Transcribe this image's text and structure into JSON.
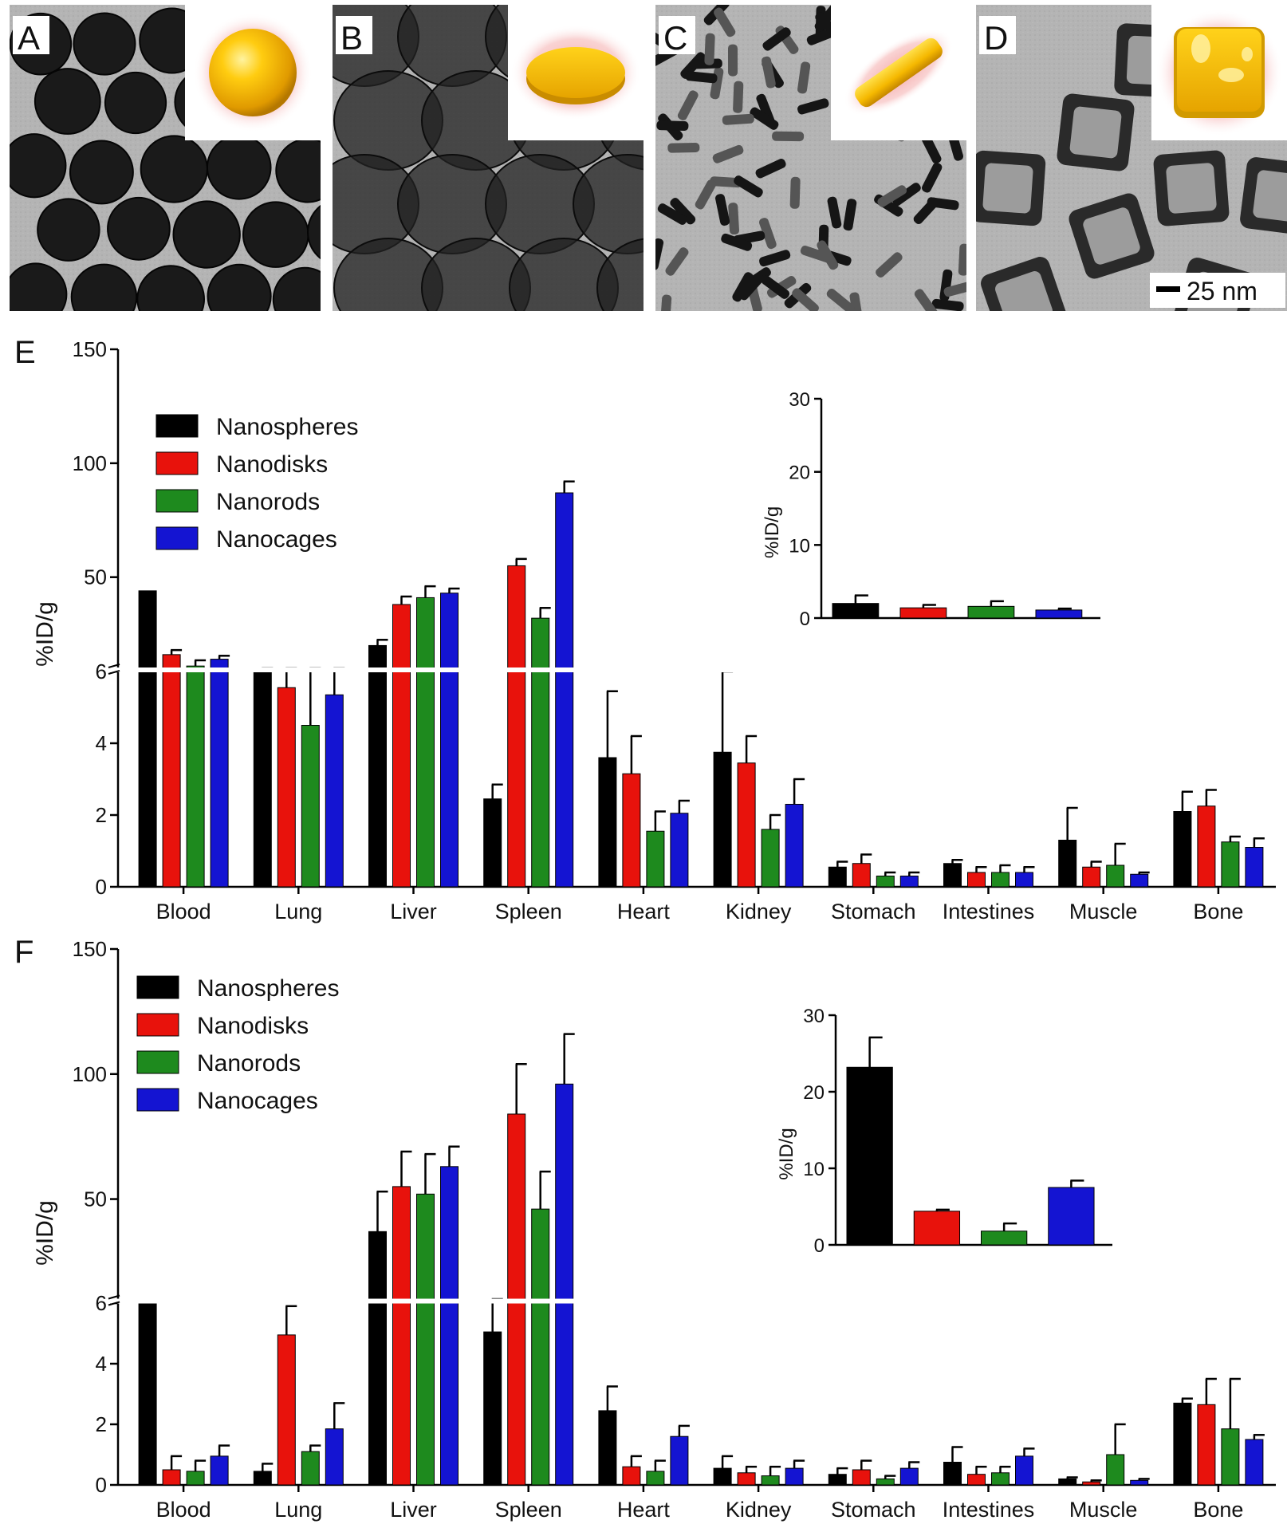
{
  "panels": {
    "tem": [
      {
        "letter": "A",
        "shape": "sphere-icon"
      },
      {
        "letter": "B",
        "shape": "disk-icon"
      },
      {
        "letter": "C",
        "shape": "rod-icon"
      },
      {
        "letter": "D",
        "shape": "cage-icon"
      }
    ],
    "scale_bar": "25 nm",
    "E_label": "E",
    "F_label": "F"
  },
  "colors": {
    "Nanospheres": "#000000",
    "Nanodisks": "#e8120c",
    "Nanorods": "#1e8a1e",
    "Nanocages": "#1414d2",
    "gold": "#f2b400",
    "glow": "#f4a0a0"
  },
  "chart_data": [
    {
      "id": "E",
      "type": "bar",
      "ylabel": "%ID/g",
      "broken_axis": true,
      "lower_ticks": [
        0,
        2,
        4,
        6
      ],
      "upper_ticks": [
        50,
        100,
        150
      ],
      "categories": [
        "Blood",
        "Lung",
        "Liver",
        "Spleen",
        "Heart",
        "Kidney",
        "Stomach",
        "Intestines",
        "Muscle",
        "Bone"
      ],
      "series": [
        {
          "name": "Nanospheres",
          "values": [
            44,
            6.5,
            20,
            2.45,
            3.6,
            3.75,
            0.55,
            0.65,
            1.3,
            2.1
          ],
          "errors": [
            0,
            0.3,
            2.5,
            0.4,
            1.85,
            2.25,
            0.15,
            0.1,
            0.9,
            0.55
          ]
        },
        {
          "name": "Nanodisks",
          "values": [
            16,
            5.55,
            38,
            55,
            3.15,
            3.45,
            0.65,
            0.4,
            0.55,
            2.25
          ],
          "errors": [
            2,
            1.5,
            3.5,
            3,
            1.05,
            0.75,
            0.25,
            0.15,
            0.15,
            0.45
          ]
        },
        {
          "name": "Nanorods",
          "values": [
            11,
            4.5,
            41,
            32,
            1.55,
            1.6,
            0.3,
            0.4,
            0.6,
            1.25
          ],
          "errors": [
            2.5,
            2.8,
            5,
            4.5,
            0.55,
            0.4,
            0.1,
            0.2,
            0.6,
            0.15
          ]
        },
        {
          "name": "Nanocages",
          "values": [
            14,
            5.35,
            43,
            87,
            2.05,
            2.3,
            0.3,
            0.4,
            0.35,
            1.1
          ],
          "errors": [
            1.5,
            1.1,
            2,
            5,
            0.35,
            0.7,
            0.1,
            0.15,
            0.05,
            0.25
          ]
        }
      ],
      "inset": {
        "ylabel": "%ID/g",
        "ticks": [
          0,
          10,
          20,
          30
        ],
        "ylim": [
          0,
          30
        ],
        "values": [
          2,
          1.4,
          1.6,
          1.1
        ],
        "errors": [
          1.1,
          0.4,
          0.7,
          0.2
        ]
      }
    },
    {
      "id": "F",
      "type": "bar",
      "ylabel": "%ID/g",
      "broken_axis": true,
      "lower_ticks": [
        0,
        2,
        4,
        6
      ],
      "upper_ticks": [
        50,
        100,
        150
      ],
      "categories": [
        "Blood",
        "Lung",
        "Liver",
        "Spleen",
        "Heart",
        "Kidney",
        "Stomach",
        "Intestines",
        "Muscle",
        "Bone"
      ],
      "series": [
        {
          "name": "Nanospheres",
          "values": [
            7,
            0.45,
            37,
            5.05,
            2.45,
            0.55,
            0.35,
            0.75,
            0.2,
            2.7
          ],
          "errors": [
            0,
            0.25,
            16,
            2.3,
            0.8,
            0.4,
            0.2,
            0.5,
            0.05,
            0.15
          ]
        },
        {
          "name": "Nanodisks",
          "values": [
            0.5,
            4.95,
            55,
            84,
            0.6,
            0.4,
            0.5,
            0.35,
            0.1,
            2.65
          ],
          "errors": [
            0.45,
            0.95,
            14,
            20,
            0.35,
            0.2,
            0.3,
            0.25,
            0.05,
            0.85
          ]
        },
        {
          "name": "Nanorods",
          "values": [
            0.45,
            1.1,
            52,
            46,
            0.45,
            0.3,
            0.2,
            0.4,
            1.0,
            1.85
          ],
          "errors": [
            0.35,
            0.2,
            16,
            15,
            0.35,
            0.3,
            0.1,
            0.2,
            1.0,
            1.65
          ]
        },
        {
          "name": "Nanocages",
          "values": [
            0.95,
            1.85,
            63,
            96,
            1.6,
            0.55,
            0.55,
            0.95,
            0.15,
            1.5
          ],
          "errors": [
            0.35,
            0.85,
            8,
            20,
            0.35,
            0.25,
            0.2,
            0.25,
            0.05,
            0.15
          ]
        }
      ],
      "inset": {
        "ylabel": "%ID/g",
        "ticks": [
          0,
          10,
          20,
          30
        ],
        "ylim": [
          0,
          30
        ],
        "values": [
          23.2,
          4.4,
          1.8,
          7.5
        ],
        "errors": [
          3.9,
          0.2,
          1.0,
          0.9
        ]
      }
    }
  ]
}
